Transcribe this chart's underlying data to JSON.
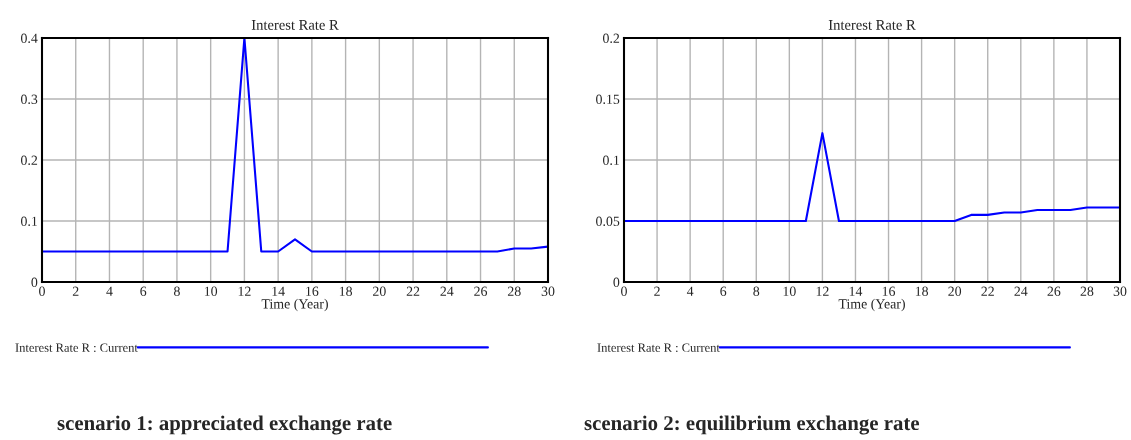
{
  "chart_data": [
    {
      "type": "line",
      "title": "Interest Rate R",
      "xlabel": "Time (Year)",
      "x": [
        0,
        1,
        2,
        3,
        4,
        5,
        6,
        7,
        8,
        9,
        10,
        11,
        12,
        13,
        14,
        15,
        16,
        17,
        18,
        19,
        20,
        21,
        22,
        23,
        24,
        25,
        26,
        27,
        28,
        29,
        30
      ],
      "series": [
        {
          "name": "Interest Rate R : Current",
          "color": "#0000ff",
          "values": [
            0.05,
            0.05,
            0.05,
            0.05,
            0.05,
            0.05,
            0.05,
            0.05,
            0.05,
            0.05,
            0.05,
            0.05,
            0.4,
            0.05,
            0.05,
            0.07,
            0.05,
            0.05,
            0.05,
            0.05,
            0.05,
            0.05,
            0.05,
            0.05,
            0.05,
            0.05,
            0.05,
            0.05,
            0.055,
            0.055,
            0.058
          ]
        }
      ],
      "xlim": [
        0,
        30
      ],
      "xticks": [
        0,
        2,
        4,
        6,
        8,
        10,
        12,
        14,
        16,
        18,
        20,
        22,
        24,
        26,
        28,
        30
      ],
      "ylim": [
        0,
        0.4
      ],
      "yticks": [
        0,
        0.1,
        0.2,
        0.3,
        0.4
      ],
      "grid": true,
      "legend": "bottom",
      "marker": "none",
      "line_style": "solid",
      "annotations": [
        "scenario 1: appreciated exchange rate"
      ]
    },
    {
      "type": "line",
      "title": "Interest Rate R",
      "xlabel": "Time (Year)",
      "x": [
        0,
        1,
        2,
        3,
        4,
        5,
        6,
        7,
        8,
        9,
        10,
        11,
        12,
        13,
        14,
        15,
        16,
        17,
        18,
        19,
        20,
        21,
        22,
        23,
        24,
        25,
        26,
        27,
        28,
        29,
        30
      ],
      "series": [
        {
          "name": "Interest Rate R : Current",
          "color": "#0000ff",
          "values": [
            0.05,
            0.05,
            0.05,
            0.05,
            0.05,
            0.05,
            0.05,
            0.05,
            0.05,
            0.05,
            0.05,
            0.05,
            0.122,
            0.05,
            0.05,
            0.05,
            0.05,
            0.05,
            0.05,
            0.05,
            0.05,
            0.055,
            0.055,
            0.057,
            0.057,
            0.059,
            0.059,
            0.059,
            0.061,
            0.061,
            0.061
          ]
        }
      ],
      "xlim": [
        0,
        30
      ],
      "xticks": [
        0,
        2,
        4,
        6,
        8,
        10,
        12,
        14,
        16,
        18,
        20,
        22,
        24,
        26,
        28,
        30
      ],
      "ylim": [
        0,
        0.2
      ],
      "yticks": [
        0,
        0.05,
        0.1,
        0.15,
        0.2
      ],
      "grid": true,
      "legend": "bottom",
      "marker": "none",
      "line_style": "solid",
      "annotations": [
        "scenario 2: equilibrium exchange rate"
      ]
    }
  ]
}
